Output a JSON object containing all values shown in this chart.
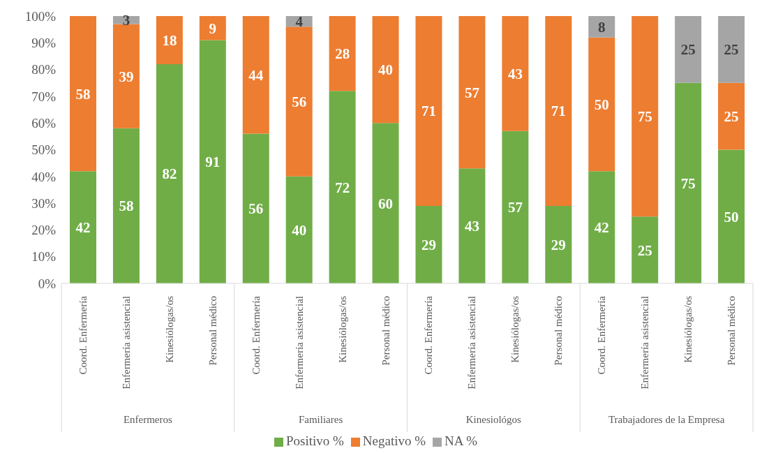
{
  "chart_data": {
    "type": "bar",
    "stacked": true,
    "data_labels": true,
    "legend": "bottom",
    "categories": [
      "Coord. Enfermería",
      "Enfermería asistencial",
      "Kinesiólogas/os",
      "Personal médico",
      "Coord. Enfermería",
      "Enfermería asistencial",
      "Kinesiólogas/os",
      "Personal médico",
      "Coord. Enfermería",
      "Enfermería asistencial",
      "Kinesiólogas/os",
      "Personal médico",
      "Coord. Enfermería",
      "Enfermería asistencial",
      "Kinesiólogas/os",
      "Personal médico"
    ],
    "annotations": [
      "Enfermeros",
      "Familiares",
      "Kinesiológos",
      "Trabajadores de la Empresa"
    ],
    "series": [
      {
        "name": "Positivo %",
        "color": "#70ad47",
        "values": [
          42,
          58,
          82,
          91,
          56,
          40,
          72,
          60,
          29,
          43,
          57,
          29,
          42,
          25,
          75,
          50
        ]
      },
      {
        "name": "Negativo %",
        "color": "#ed7d31",
        "values": [
          58,
          39,
          18,
          9,
          44,
          56,
          28,
          40,
          71,
          57,
          43,
          71,
          50,
          75,
          null,
          25
        ]
      },
      {
        "name": "NA %",
        "color": "#a5a5a5",
        "values": [
          null,
          3,
          null,
          null,
          null,
          4,
          null,
          null,
          null,
          null,
          null,
          null,
          8,
          null,
          25,
          25
        ]
      }
    ],
    "ylim": [
      0,
      100
    ],
    "yticks": [
      {
        "value": 0,
        "label": "0%"
      },
      {
        "value": 10,
        "label": "10%"
      },
      {
        "value": 20,
        "label": "20%"
      },
      {
        "value": 30,
        "label": "30%"
      },
      {
        "value": 40,
        "label": "40%"
      },
      {
        "value": 50,
        "label": "50%"
      },
      {
        "value": 60,
        "label": "60%"
      },
      {
        "value": 70,
        "label": "70%"
      },
      {
        "value": 80,
        "label": "80%"
      },
      {
        "value": 90,
        "label": "90%"
      },
      {
        "value": 100,
        "label": "100%"
      }
    ]
  }
}
